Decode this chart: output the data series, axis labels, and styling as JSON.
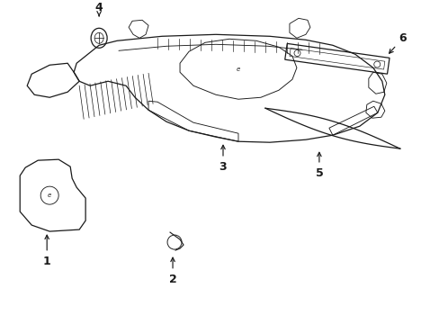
{
  "background_color": "#ffffff",
  "line_color": "#1a1a1a",
  "lw": 0.9
}
